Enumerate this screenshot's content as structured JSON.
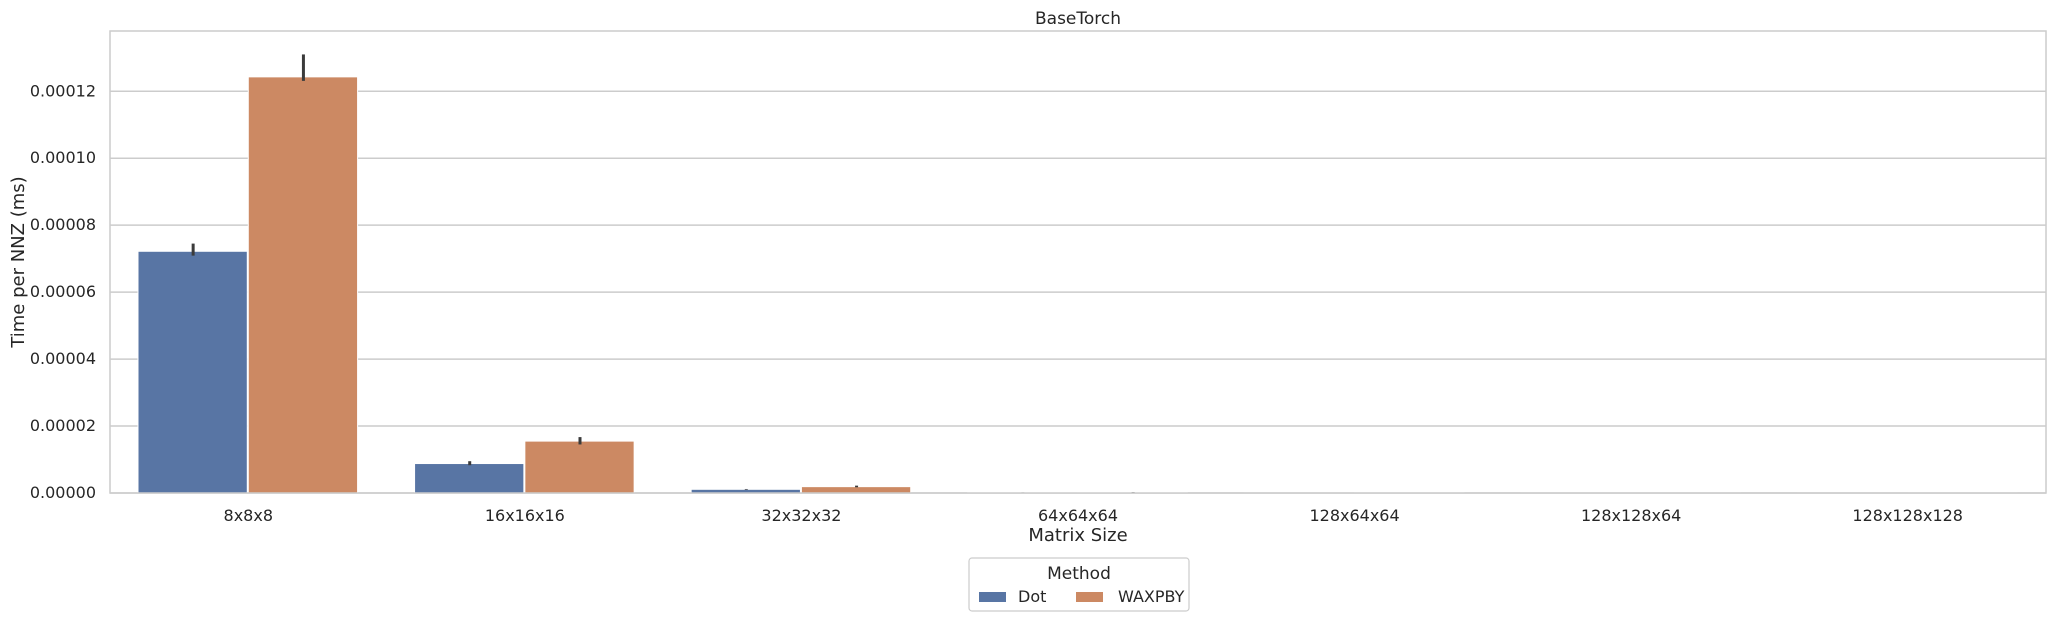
{
  "chart_data": {
    "type": "bar",
    "title": "BaseTorch",
    "xlabel": "Matrix Size",
    "ylabel": "Time per NNZ (ms)",
    "categories": [
      "8x8x8",
      "16x16x16",
      "32x32x32",
      "64x64x64",
      "128x64x64",
      "128x128x64",
      "128x128x128"
    ],
    "ylim": [
      0,
      0.000138
    ],
    "yticks": [
      0,
      2e-05,
      4e-05,
      6e-05,
      8e-05,
      0.0001,
      0.00012
    ],
    "ytick_labels": [
      "0.00000",
      "0.00002",
      "0.00004",
      "0.00006",
      "0.00008",
      "0.00010",
      "0.00012"
    ],
    "grid": true,
    "legend": {
      "title": "Method",
      "placement": "bottom-center"
    },
    "series": [
      {
        "name": "Dot",
        "color": "#5875a4",
        "values": [
          7.22e-05,
          8.8e-06,
          1.1e-06,
          1.4e-07,
          5e-08,
          3e-08,
          2e-08
        ],
        "err_low": [
          7.09e-05,
          8.3e-06,
          1e-06,
          1e-07,
          3e-08,
          2e-08,
          1e-08
        ],
        "err_high": [
          7.45e-05,
          9.5e-06,
          1.2e-06,
          1.8e-07,
          7e-08,
          4e-08,
          3e-08
        ]
      },
      {
        "name": "WAXPBY",
        "color": "#cc8963",
        "values": [
          0.0001243,
          1.55e-05,
          1.9e-06,
          2.5e-07,
          9e-08,
          5e-08,
          3e-08
        ],
        "err_low": [
          0.0001231,
          1.45e-05,
          1.7e-06,
          2e-07,
          7e-08,
          4e-08,
          2e-08
        ],
        "err_high": [
          0.000131,
          1.67e-05,
          2.2e-06,
          3e-07,
          1.1e-07,
          6e-08,
          4e-08
        ]
      }
    ]
  }
}
